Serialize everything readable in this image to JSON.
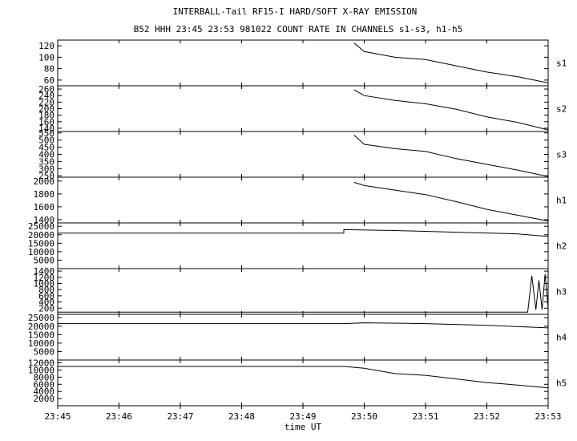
{
  "figure": {
    "title": "INTERBALL-Tail RF15-I HARD/SOFT X-RAY EMISSION",
    "subtitle": "B52 HHH 23:45 23:53 981022  COUNT RATE IN CHANNELS s1-s3, h1-h5"
  },
  "chart_data": {
    "type": "line",
    "xlabel": "time UT",
    "x_ticks": [
      "23:45",
      "23:46",
      "23:47",
      "23:48",
      "23:49",
      "23:50",
      "23:51",
      "23:52",
      "23:53"
    ],
    "xlim": [
      "23:45",
      "23:53"
    ],
    "grid": false,
    "panels": [
      {
        "name": "s1",
        "yticks": [
          60,
          80,
          100,
          120
        ],
        "ylim": [
          50,
          130
        ],
        "series": [
          {
            "values": [
              [
                "23:49:50",
                125
              ],
              [
                "23:50:00",
                110
              ],
              [
                "23:50:30",
                100
              ],
              [
                "23:51:00",
                96
              ],
              [
                "23:51:30",
                85
              ],
              [
                "23:52:00",
                74
              ],
              [
                "23:52:30",
                66
              ],
              [
                "23:53:00",
                55
              ]
            ]
          }
        ]
      },
      {
        "name": "s2",
        "yticks": [
          140,
          160,
          180,
          200,
          220,
          240,
          260
        ],
        "ylim": [
          130,
          270
        ],
        "series": [
          {
            "values": [
              [
                "23:49:50",
                258
              ],
              [
                "23:50:00",
                240
              ],
              [
                "23:50:30",
                225
              ],
              [
                "23:51:00",
                215
              ],
              [
                "23:51:30",
                198
              ],
              [
                "23:52:00",
                175
              ],
              [
                "23:52:30",
                158
              ],
              [
                "23:53:00",
                135
              ]
            ]
          }
        ]
      },
      {
        "name": "s3",
        "yticks": [
          250,
          300,
          350,
          400,
          450,
          500,
          550
        ],
        "ylim": [
          240,
          560
        ],
        "series": [
          {
            "values": [
              [
                "23:49:50",
                535
              ],
              [
                "23:50:00",
                470
              ],
              [
                "23:50:30",
                440
              ],
              [
                "23:51:00",
                420
              ],
              [
                "23:51:30",
                370
              ],
              [
                "23:52:00",
                330
              ],
              [
                "23:52:30",
                290
              ],
              [
                "23:53:00",
                245
              ]
            ]
          }
        ]
      },
      {
        "name": "h1",
        "yticks": [
          1400,
          1600,
          1800,
          2000
        ],
        "ylim": [
          1350,
          2060
        ],
        "series": [
          {
            "values": [
              [
                "23:49:50",
                1980
              ],
              [
                "23:50:00",
                1930
              ],
              [
                "23:50:30",
                1860
              ],
              [
                "23:51:00",
                1790
              ],
              [
                "23:51:30",
                1680
              ],
              [
                "23:52:00",
                1560
              ],
              [
                "23:52:30",
                1470
              ],
              [
                "23:53:00",
                1380
              ]
            ]
          }
        ]
      },
      {
        "name": "h2",
        "yticks": [
          5000,
          10000,
          15000,
          20000,
          25000
        ],
        "ylim": [
          0,
          27000
        ],
        "series": [
          {
            "values": [
              [
                "23:45:00",
                21000
              ],
              [
                "23:49:40",
                21000
              ],
              [
                "23:49:40",
                23000
              ],
              [
                "23:50:30",
                22500
              ],
              [
                "23:51:30",
                21500
              ],
              [
                "23:52:30",
                20500
              ],
              [
                "23:53:00",
                19000
              ]
            ]
          }
        ]
      },
      {
        "name": "h3",
        "yticks": [
          200,
          400,
          600,
          800,
          1000,
          1200,
          1400
        ],
        "ylim": [
          0,
          1480
        ],
        "series": [
          {
            "values": [
              [
                "23:45:00",
                70
              ],
              [
                "23:52:40",
                70
              ],
              [
                "23:52:44",
                1250
              ],
              [
                "23:52:48",
                150
              ],
              [
                "23:52:51",
                1100
              ],
              [
                "23:52:54",
                150
              ],
              [
                "23:52:57",
                1300
              ],
              [
                "23:53:00",
                200
              ]
            ]
          }
        ]
      },
      {
        "name": "h4",
        "yticks": [
          5000,
          10000,
          15000,
          20000,
          25000
        ],
        "ylim": [
          0,
          27000
        ],
        "series": [
          {
            "values": [
              [
                "23:45:00",
                21500
              ],
              [
                "23:49:40",
                21500
              ],
              [
                "23:50:00",
                22000
              ],
              [
                "23:51:00",
                21500
              ],
              [
                "23:52:00",
                20500
              ],
              [
                "23:53:00",
                19000
              ]
            ]
          }
        ]
      },
      {
        "name": "h5",
        "yticks": [
          2000,
          4000,
          6000,
          8000,
          10000,
          12000
        ],
        "ylim": [
          0,
          12800
        ],
        "series": [
          {
            "values": [
              [
                "23:45:00",
                11000
              ],
              [
                "23:49:40",
                11000
              ],
              [
                "23:50:00",
                10500
              ],
              [
                "23:50:30",
                9000
              ],
              [
                "23:51:00",
                8500
              ],
              [
                "23:51:30",
                7500
              ],
              [
                "23:52:00",
                6500
              ],
              [
                "23:52:30",
                5800
              ],
              [
                "23:53:00",
                5000
              ]
            ]
          }
        ]
      }
    ]
  }
}
